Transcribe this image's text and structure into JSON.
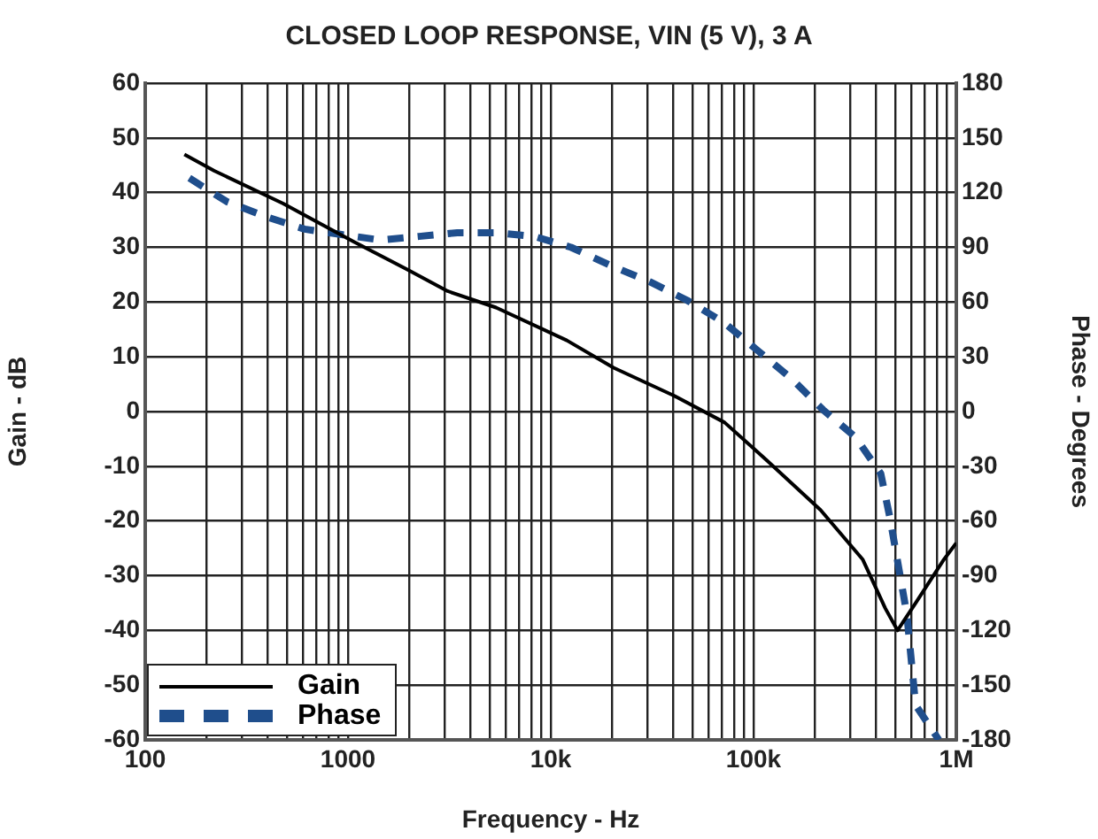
{
  "chart_data": {
    "type": "line",
    "title": "CLOSED LOOP RESPONSE, VIN (5 V), 3 A",
    "xlabel": "Frequency - Hz",
    "ylabel": "Gain - dB",
    "y2label": "Phase - Degrees",
    "log": "x",
    "grid": true,
    "legend": "bottom left",
    "marker": "none",
    "xlim": [
      100,
      1000000
    ],
    "xticks": [
      {
        "value": 100,
        "label": "100"
      },
      {
        "value": 200,
        "label": null
      },
      {
        "value": 300,
        "label": null
      },
      {
        "value": 400,
        "label": null
      },
      {
        "value": 500,
        "label": null
      },
      {
        "value": 600,
        "label": null
      },
      {
        "value": 700,
        "label": null
      },
      {
        "value": 800,
        "label": null
      },
      {
        "value": 900,
        "label": null
      },
      {
        "value": 1000,
        "label": "1000"
      },
      {
        "value": 2000,
        "label": null
      },
      {
        "value": 3000,
        "label": null
      },
      {
        "value": 4000,
        "label": null
      },
      {
        "value": 5000,
        "label": null
      },
      {
        "value": 6000,
        "label": null
      },
      {
        "value": 7000,
        "label": null
      },
      {
        "value": 8000,
        "label": null
      },
      {
        "value": 9000,
        "label": null
      },
      {
        "value": 10000,
        "label": "10k"
      },
      {
        "value": 20000,
        "label": null
      },
      {
        "value": 30000,
        "label": null
      },
      {
        "value": 40000,
        "label": null
      },
      {
        "value": 50000,
        "label": null
      },
      {
        "value": 60000,
        "label": null
      },
      {
        "value": 70000,
        "label": null
      },
      {
        "value": 80000,
        "label": null
      },
      {
        "value": 90000,
        "label": null
      },
      {
        "value": 100000,
        "label": "100k"
      },
      {
        "value": 200000,
        "label": null
      },
      {
        "value": 300000,
        "label": null
      },
      {
        "value": 400000,
        "label": null
      },
      {
        "value": 500000,
        "label": null
      },
      {
        "value": 600000,
        "label": null
      },
      {
        "value": 700000,
        "label": null
      },
      {
        "value": 800000,
        "label": null
      },
      {
        "value": 900000,
        "label": null
      },
      {
        "value": 1000000,
        "label": "1M"
      }
    ],
    "ylim": [
      -60,
      60
    ],
    "yticks": [
      -60,
      -50,
      -40,
      -30,
      -20,
      -10,
      0,
      10,
      20,
      30,
      40,
      50,
      60
    ],
    "y2lim": [
      -180,
      180
    ],
    "y2ticks": [
      -180,
      -150,
      -120,
      -90,
      -60,
      -30,
      0,
      30,
      60,
      90,
      120,
      150,
      180
    ],
    "series": [
      {
        "name": "Gain",
        "color": "#000000",
        "line_style": "solid",
        "x": [
          156,
          219,
          479,
          1070,
          1950,
          3100,
          5370,
          12000,
          20400,
          40000,
          72000,
          117000,
          214000,
          345000,
          447000,
          513000,
          630000,
          870000,
          1000000
        ],
        "values": [
          47,
          44,
          38,
          31,
          26,
          22,
          19,
          13,
          8,
          3,
          -2,
          -9,
          -18,
          -27,
          -36,
          -40,
          -35,
          -27,
          -24
        ]
      },
      {
        "name": "Phase",
        "color": "#1f4e8c",
        "line_style": "dashed",
        "axis": "y2",
        "x": [
          165,
          253,
          390,
          610,
          930,
          1450,
          2240,
          3460,
          5370,
          8300,
          12600,
          19800,
          31000,
          47000,
          71000,
          106000,
          154000,
          220000,
          318000,
          424000,
          470000,
          515000,
          570000,
          630000,
          820000
        ],
        "values": [
          128,
          115,
          107,
          100,
          97,
          94,
          96,
          98,
          98,
          96,
          90,
          80,
          71,
          61,
          49,
          33,
          18,
          1,
          -14,
          -34,
          -58,
          -83,
          -111,
          -161,
          -180
        ]
      }
    ]
  }
}
